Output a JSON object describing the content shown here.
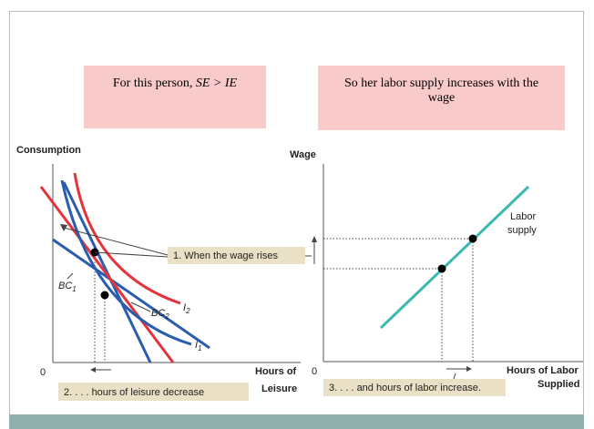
{
  "boxes": [
    {
      "text": "For this person, ",
      "emphasis": "SE > IE"
    },
    {
      "text": "So her labor supply increases with the wage"
    }
  ],
  "left_graph": {
    "y_label": "Consumption",
    "origin": "0",
    "x_label": [
      "Hours of",
      "Leisure"
    ],
    "bc1": {
      "base": "BC",
      "sub": "1"
    },
    "bc2": {
      "base": "BC",
      "sub": "2"
    },
    "i2": {
      "base": "I",
      "sub": "2"
    },
    "i1": {
      "base": "I",
      "sub": "1"
    },
    "callout_1": "1. When the wage rises",
    "callout_2": "2. . . . hours of leisure decrease"
  },
  "right_graph": {
    "y_label": "Wage",
    "origin": "0",
    "curve_label": [
      "Labor",
      "supply"
    ],
    "x_label": [
      "Hours of Labor",
      "Supplied"
    ],
    "callout_3": "3. . . . and hours of labor increase."
  }
}
